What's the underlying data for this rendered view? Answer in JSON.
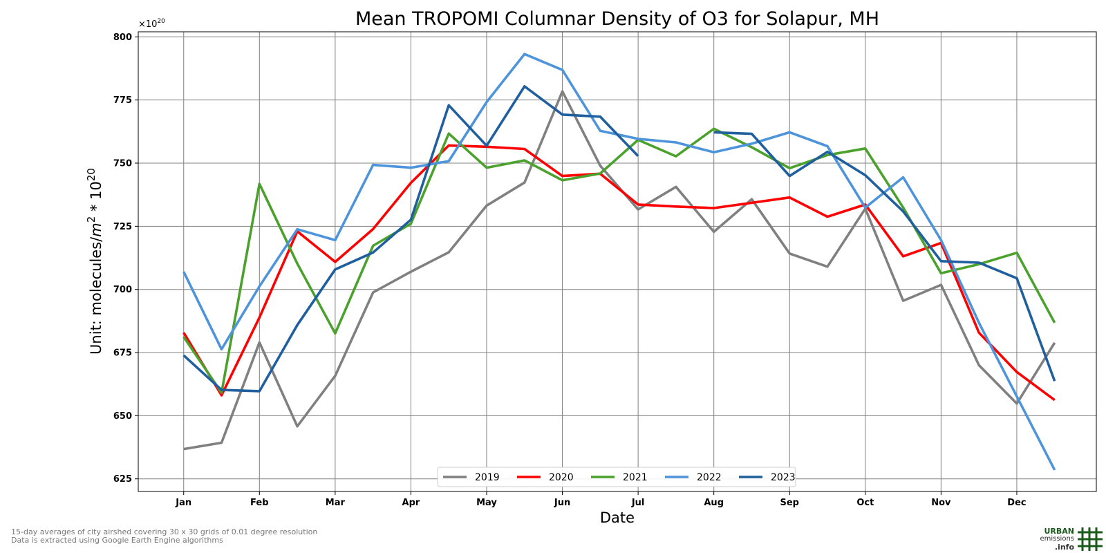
{
  "chart_data": {
    "type": "line",
    "title": "Mean TROPOMI Columnar Density of O3 for Solapur, MH",
    "xlabel": "Date",
    "ylabel_text": "Unit: molecules/",
    "ylabel_math": "m² * 10²⁰",
    "ylabel_unit": {
      "base_m": "m",
      "sup_m": "2",
      "times": "* 10",
      "sup_10": "20"
    },
    "offset_label": {
      "base": "×10",
      "exp": "20"
    },
    "ylim": [
      620,
      802
    ],
    "xlim": [
      0.4,
      13.05
    ],
    "yticks": [
      625,
      650,
      675,
      700,
      725,
      750,
      775,
      800
    ],
    "month_ticks": [
      "Jan",
      "Feb",
      "Mar",
      "Apr",
      "May",
      "Jun",
      "Jul",
      "Aug",
      "Sep",
      "Oct",
      "Nov",
      "Dec"
    ],
    "grid": true,
    "legend_placement": "lower-center",
    "series": [
      {
        "name": "2019",
        "color": "#808080",
        "x": [
          1,
          1.5,
          2,
          2.5,
          3,
          3.5,
          4,
          4.5,
          5,
          5.5,
          6,
          6.5,
          7,
          7.5,
          8,
          8.5,
          9,
          9.5,
          10,
          10.5,
          11,
          11.5,
          12,
          12.5
        ],
        "values": [
          636.8,
          639.3,
          679.0,
          645.8,
          665.8,
          698.8,
          707.0,
          714.7,
          733.2,
          742.3,
          778.4,
          749.0,
          731.7,
          740.6,
          722.8,
          735.7,
          714.2,
          709.0,
          732.0,
          695.5,
          701.8,
          670.0,
          654.8,
          678.9
        ]
      },
      {
        "name": "2020",
        "color": "#ff0000",
        "x": [
          1,
          1.5,
          2,
          2.5,
          3,
          3.5,
          4,
          4.5,
          5,
          5.5,
          6,
          6.5,
          7,
          7.5,
          8,
          8.5,
          9,
          9.5,
          10,
          10.5,
          11,
          11.5,
          12,
          12.5
        ],
        "values": [
          682.9,
          658.1,
          688.9,
          723.0,
          710.9,
          723.9,
          742.2,
          757.0,
          756.5,
          755.6,
          744.9,
          745.8,
          733.6,
          732.8,
          732.2,
          734.3,
          736.4,
          728.8,
          733.6,
          713.1,
          718.4,
          682.9,
          667.3,
          656.2
        ]
      },
      {
        "name": "2021",
        "color": "#4aa12b",
        "x": [
          1,
          1.5,
          2,
          2.5,
          3,
          3.5,
          4,
          4.5,
          5,
          5.5,
          6,
          6.5,
          7,
          7.5,
          8,
          8.5,
          9,
          9.5,
          10,
          10.5,
          11,
          11.5,
          12,
          12.5
        ],
        "values": [
          681.2,
          659.1,
          741.8,
          710.2,
          682.6,
          717.3,
          726.0,
          761.7,
          748.2,
          751.1,
          743.2,
          745.9,
          759.2,
          752.7,
          763.6,
          756.3,
          748.0,
          753.2,
          755.8,
          732.4,
          706.4,
          710.0,
          714.5,
          686.8
        ]
      },
      {
        "name": "2022",
        "color": "#4d94db",
        "x": [
          1,
          1.5,
          2,
          2.5,
          3,
          3.5,
          4,
          4.5,
          5,
          5.5,
          6,
          6.5,
          7,
          7.5,
          8,
          8.5,
          9,
          9.5,
          10,
          10.5,
          11,
          11.5,
          12,
          12.5
        ],
        "values": [
          707.0,
          676.3,
          701.2,
          723.8,
          719.5,
          749.3,
          748.2,
          750.8,
          774.2,
          793.2,
          786.9,
          762.8,
          759.6,
          758.2,
          754.3,
          757.7,
          762.2,
          756.7,
          732.4,
          744.4,
          719.5,
          686.8,
          657.6,
          628.5
        ]
      },
      {
        "name": "2023",
        "color": "#1f5f9e",
        "x": [
          1,
          1.5,
          2,
          2.5,
          3,
          3.5,
          4,
          4.5,
          5,
          5.5,
          6,
          6.5,
          7,
          7.5,
          8,
          8.5,
          9,
          9.5,
          10,
          10.5,
          11,
          11.5,
          12,
          12.5
        ],
        "values": [
          673.9,
          660.2,
          659.7,
          685.9,
          707.9,
          714.6,
          727.6,
          772.9,
          756.9,
          780.4,
          769.2,
          768.4,
          752.8,
          null,
          762.2,
          761.6,
          744.9,
          754.5,
          745.2,
          730.9,
          711.2,
          710.6,
          704.4,
          663.7
        ]
      }
    ]
  },
  "footnote": {
    "line1": "15-day averages of city airshed covering 30 x 30 grids of 0.01 degree resolution",
    "line2": "Data is extracted using Google Earth Engine algorithms"
  },
  "logo": {
    "line1": "URBAN",
    "line2": "emissions",
    "line3": ".info",
    "color": "#1a5a1a"
  }
}
